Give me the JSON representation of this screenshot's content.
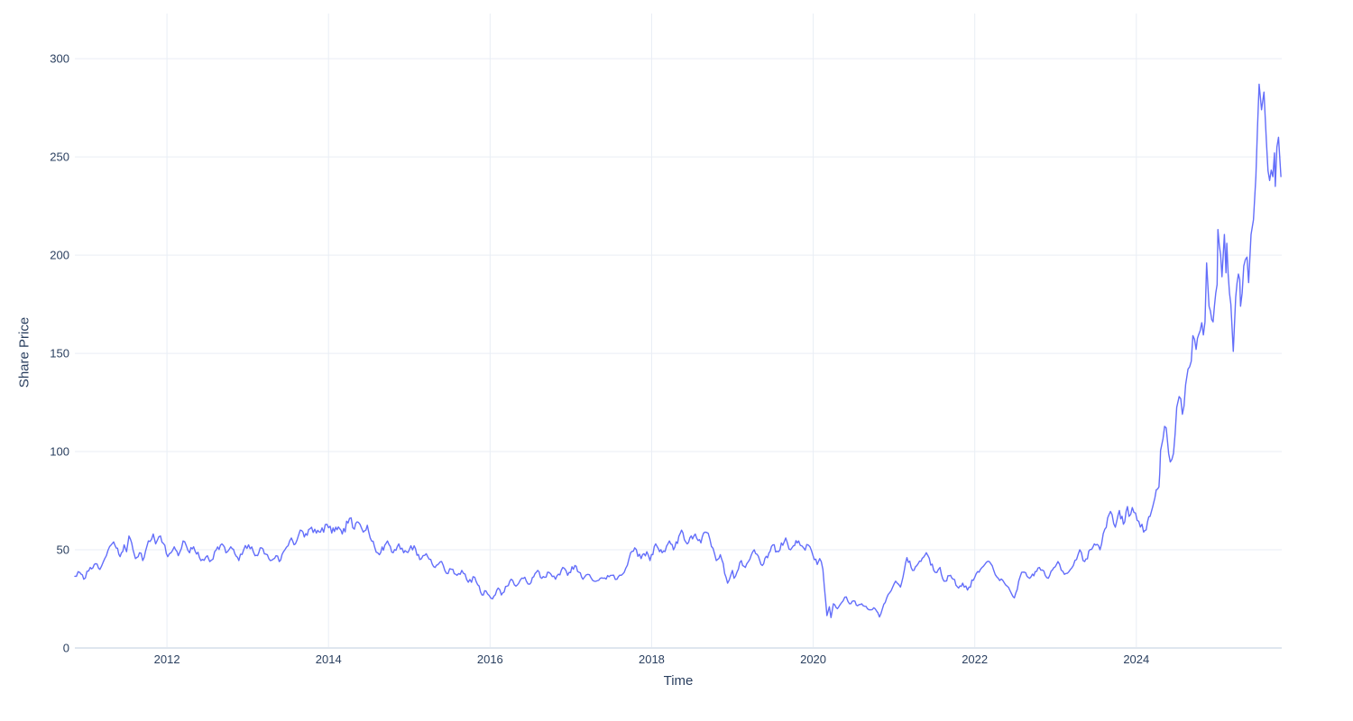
{
  "chart": {
    "xlabel": "Time",
    "ylabel": "Share Price",
    "line_color": "#636EFA",
    "grid_color": "#e9eef5",
    "zeroline_color": "#dfe6ef",
    "tick_color": "#2a3f5f",
    "background": "#ffffff"
  },
  "chart_data": {
    "type": "line",
    "title": "",
    "xlabel": "Time",
    "ylabel": "Share Price",
    "x_ticks": [
      2012,
      2014,
      2016,
      2018,
      2020,
      2022,
      2024
    ],
    "y_ticks": [
      0,
      50,
      100,
      150,
      200,
      250,
      300
    ],
    "x_range": [
      2010.86,
      2025.8
    ],
    "y_range": [
      0,
      323
    ],
    "grid": true,
    "legend": false,
    "series": [
      {
        "name": "Share Price",
        "color": "#636EFA",
        "points": [
          [
            2010.86,
            36.5
          ],
          [
            2010.92,
            38.5
          ],
          [
            2010.97,
            35
          ],
          [
            2011.05,
            41
          ],
          [
            2011.1,
            42.5
          ],
          [
            2011.17,
            40
          ],
          [
            2011.25,
            47
          ],
          [
            2011.31,
            52.5
          ],
          [
            2011.34,
            54
          ],
          [
            2011.42,
            46.5
          ],
          [
            2011.47,
            52.5
          ],
          [
            2011.5,
            49
          ],
          [
            2011.53,
            57
          ],
          [
            2011.58,
            50
          ],
          [
            2011.61,
            45.5
          ],
          [
            2011.66,
            48.5
          ],
          [
            2011.7,
            44.5
          ],
          [
            2011.77,
            54.5
          ],
          [
            2011.83,
            58
          ],
          [
            2011.86,
            53
          ],
          [
            2011.92,
            57
          ],
          [
            2012.01,
            46.5
          ],
          [
            2012.09,
            51.5
          ],
          [
            2012.14,
            47
          ],
          [
            2012.2,
            54.5
          ],
          [
            2012.28,
            48.5
          ],
          [
            2012.33,
            51.5
          ],
          [
            2012.42,
            44.5
          ],
          [
            2012.5,
            47
          ],
          [
            2012.53,
            44
          ],
          [
            2012.61,
            50
          ],
          [
            2012.68,
            53
          ],
          [
            2012.73,
            48.5
          ],
          [
            2012.79,
            51.5
          ],
          [
            2012.89,
            44.5
          ],
          [
            2012.95,
            50
          ],
          [
            2013.01,
            52.5
          ],
          [
            2013.09,
            47
          ],
          [
            2013.17,
            51
          ],
          [
            2013.28,
            44.5
          ],
          [
            2013.35,
            47
          ],
          [
            2013.39,
            44
          ],
          [
            2013.46,
            50
          ],
          [
            2013.54,
            56
          ],
          [
            2013.59,
            53
          ],
          [
            2013.65,
            60
          ],
          [
            2013.7,
            56.5
          ],
          [
            2013.79,
            61.5
          ],
          [
            2013.85,
            58.5
          ],
          [
            2013.9,
            59
          ],
          [
            2013.98,
            63
          ],
          [
            2014.04,
            58.5
          ],
          [
            2014.09,
            61.5
          ],
          [
            2014.17,
            58
          ],
          [
            2014.26,
            66
          ],
          [
            2014.32,
            60.5
          ],
          [
            2014.37,
            64
          ],
          [
            2014.43,
            59
          ],
          [
            2014.48,
            62.5
          ],
          [
            2014.57,
            51.5
          ],
          [
            2014.63,
            47.5
          ],
          [
            2014.73,
            54.5
          ],
          [
            2014.8,
            48.5
          ],
          [
            2014.87,
            53
          ],
          [
            2014.93,
            48.5
          ],
          [
            2015,
            50
          ],
          [
            2015.06,
            52
          ],
          [
            2015.13,
            45
          ],
          [
            2015.21,
            48
          ],
          [
            2015.32,
            41
          ],
          [
            2015.4,
            44
          ],
          [
            2015.46,
            38
          ],
          [
            2015.54,
            40
          ],
          [
            2015.59,
            37
          ],
          [
            2015.65,
            39.5
          ],
          [
            2015.73,
            33.5
          ],
          [
            2015.81,
            36
          ],
          [
            2015.9,
            27
          ],
          [
            2015.95,
            29
          ],
          [
            2016.03,
            25
          ],
          [
            2016.1,
            30.5
          ],
          [
            2016.14,
            27
          ],
          [
            2016.26,
            35
          ],
          [
            2016.32,
            31.5
          ],
          [
            2016.43,
            36
          ],
          [
            2016.49,
            32.5
          ],
          [
            2016.59,
            39.5
          ],
          [
            2016.64,
            35.5
          ],
          [
            2016.73,
            38.5
          ],
          [
            2016.81,
            35
          ],
          [
            2016.9,
            41
          ],
          [
            2016.96,
            37
          ],
          [
            2017.05,
            42
          ],
          [
            2017.15,
            35
          ],
          [
            2017.21,
            37.5
          ],
          [
            2017.29,
            34
          ],
          [
            2017.4,
            35.5
          ],
          [
            2017.51,
            37
          ],
          [
            2017.57,
            35
          ],
          [
            2017.66,
            38.5
          ],
          [
            2017.74,
            48.5
          ],
          [
            2017.79,
            51
          ],
          [
            2017.87,
            45.5
          ],
          [
            2017.94,
            49
          ],
          [
            2017.98,
            44.5
          ],
          [
            2018.05,
            53
          ],
          [
            2018.13,
            48.5
          ],
          [
            2018.22,
            54.5
          ],
          [
            2018.27,
            50
          ],
          [
            2018.37,
            60
          ],
          [
            2018.44,
            53
          ],
          [
            2018.54,
            58
          ],
          [
            2018.61,
            53.5
          ],
          [
            2018.66,
            59
          ],
          [
            2018.72,
            55.5
          ],
          [
            2018.8,
            44.5
          ],
          [
            2018.85,
            47.5
          ],
          [
            2018.94,
            33
          ],
          [
            2019,
            39.5
          ],
          [
            2019.02,
            35.5
          ],
          [
            2019.11,
            44.5
          ],
          [
            2019.16,
            41
          ],
          [
            2019.27,
            50
          ],
          [
            2019.37,
            42
          ],
          [
            2019.5,
            52.5
          ],
          [
            2019.57,
            49
          ],
          [
            2019.66,
            56
          ],
          [
            2019.72,
            50
          ],
          [
            2019.82,
            54.5
          ],
          [
            2019.88,
            51
          ],
          [
            2019.96,
            51.5
          ],
          [
            2020.05,
            42.5
          ],
          [
            2020.08,
            45.5
          ],
          [
            2020.12,
            40
          ],
          [
            2020.17,
            16.5
          ],
          [
            2020.2,
            21
          ],
          [
            2020.22,
            15.5
          ],
          [
            2020.25,
            22.5
          ],
          [
            2020.3,
            20
          ],
          [
            2020.35,
            23
          ],
          [
            2020.41,
            26
          ],
          [
            2020.45,
            22.5
          ],
          [
            2020.5,
            24
          ],
          [
            2020.55,
            21.5
          ],
          [
            2020.6,
            22.5
          ],
          [
            2020.69,
            19.5
          ],
          [
            2020.75,
            20.5
          ],
          [
            2020.8,
            18
          ],
          [
            2020.82,
            15.8
          ],
          [
            2020.91,
            25.5
          ],
          [
            2021.02,
            34
          ],
          [
            2021.08,
            31
          ],
          [
            2021.16,
            46
          ],
          [
            2021.23,
            39.5
          ],
          [
            2021.3,
            43
          ],
          [
            2021.4,
            48.5
          ],
          [
            2021.51,
            38.5
          ],
          [
            2021.57,
            41
          ],
          [
            2021.62,
            34
          ],
          [
            2021.7,
            37
          ],
          [
            2021.8,
            30.5
          ],
          [
            2021.85,
            33
          ],
          [
            2021.91,
            29.5
          ],
          [
            2022,
            36
          ],
          [
            2022.07,
            40
          ],
          [
            2022.18,
            44
          ],
          [
            2022.29,
            35.5
          ],
          [
            2022.4,
            31.5
          ],
          [
            2022.49,
            25.5
          ],
          [
            2022.58,
            38.5
          ],
          [
            2022.68,
            35.5
          ],
          [
            2022.8,
            41
          ],
          [
            2022.91,
            35.5
          ],
          [
            2023.03,
            44
          ],
          [
            2023.11,
            37.5
          ],
          [
            2023.22,
            42
          ],
          [
            2023.3,
            50
          ],
          [
            2023.36,
            44
          ],
          [
            2023.48,
            53
          ],
          [
            2023.55,
            50
          ],
          [
            2023.61,
            60.5
          ],
          [
            2023.68,
            69.5
          ],
          [
            2023.74,
            61.5
          ],
          [
            2023.79,
            70
          ],
          [
            2023.84,
            63
          ],
          [
            2023.89,
            72
          ],
          [
            2023.91,
            67
          ],
          [
            2023.95,
            71.5
          ],
          [
            2024.01,
            65
          ],
          [
            2024.07,
            63
          ],
          [
            2024.09,
            59
          ],
          [
            2024.17,
            67
          ],
          [
            2024.2,
            71.5
          ],
          [
            2024.23,
            76.5
          ],
          [
            2024.28,
            82
          ],
          [
            2024.29,
            89
          ],
          [
            2024.3,
            100.5
          ],
          [
            2024.33,
            106.5
          ],
          [
            2024.37,
            112
          ],
          [
            2024.4,
            99
          ],
          [
            2024.44,
            96
          ],
          [
            2024.48,
            109
          ],
          [
            2024.5,
            122.5
          ],
          [
            2024.53,
            128
          ],
          [
            2024.57,
            119
          ],
          [
            2024.61,
            134
          ],
          [
            2024.64,
            142
          ],
          [
            2024.68,
            146
          ],
          [
            2024.7,
            159
          ],
          [
            2024.74,
            152
          ],
          [
            2024.79,
            161.5
          ],
          [
            2024.85,
            166
          ],
          [
            2024.87,
            196
          ],
          [
            2024.9,
            174
          ],
          [
            2024.95,
            166
          ],
          [
            2025,
            185
          ],
          [
            2025.01,
            213
          ],
          [
            2025.06,
            189
          ],
          [
            2025.09,
            210.5
          ],
          [
            2025.11,
            191
          ],
          [
            2025.12,
            206
          ],
          [
            2025.17,
            175
          ],
          [
            2025.2,
            151
          ],
          [
            2025.23,
            178.5
          ],
          [
            2025.28,
            187.5
          ],
          [
            2025.29,
            174
          ],
          [
            2025.33,
            194.5
          ],
          [
            2025.37,
            199
          ],
          [
            2025.39,
            186
          ],
          [
            2025.42,
            210.5
          ],
          [
            2025.45,
            218
          ],
          [
            2025.48,
            240
          ],
          [
            2025.5,
            265
          ],
          [
            2025.52,
            287
          ],
          [
            2025.55,
            274
          ],
          [
            2025.58,
            283
          ],
          [
            2025.61,
            258
          ],
          [
            2025.65,
            238
          ],
          [
            2025.71,
            252
          ],
          [
            2025.72,
            235
          ],
          [
            2025.76,
            260
          ],
          [
            2025.79,
            240
          ]
        ]
      }
    ],
    "noise": {
      "seed": 7,
      "amplitude_pct": 3.8,
      "step_years": 0.016
    }
  }
}
